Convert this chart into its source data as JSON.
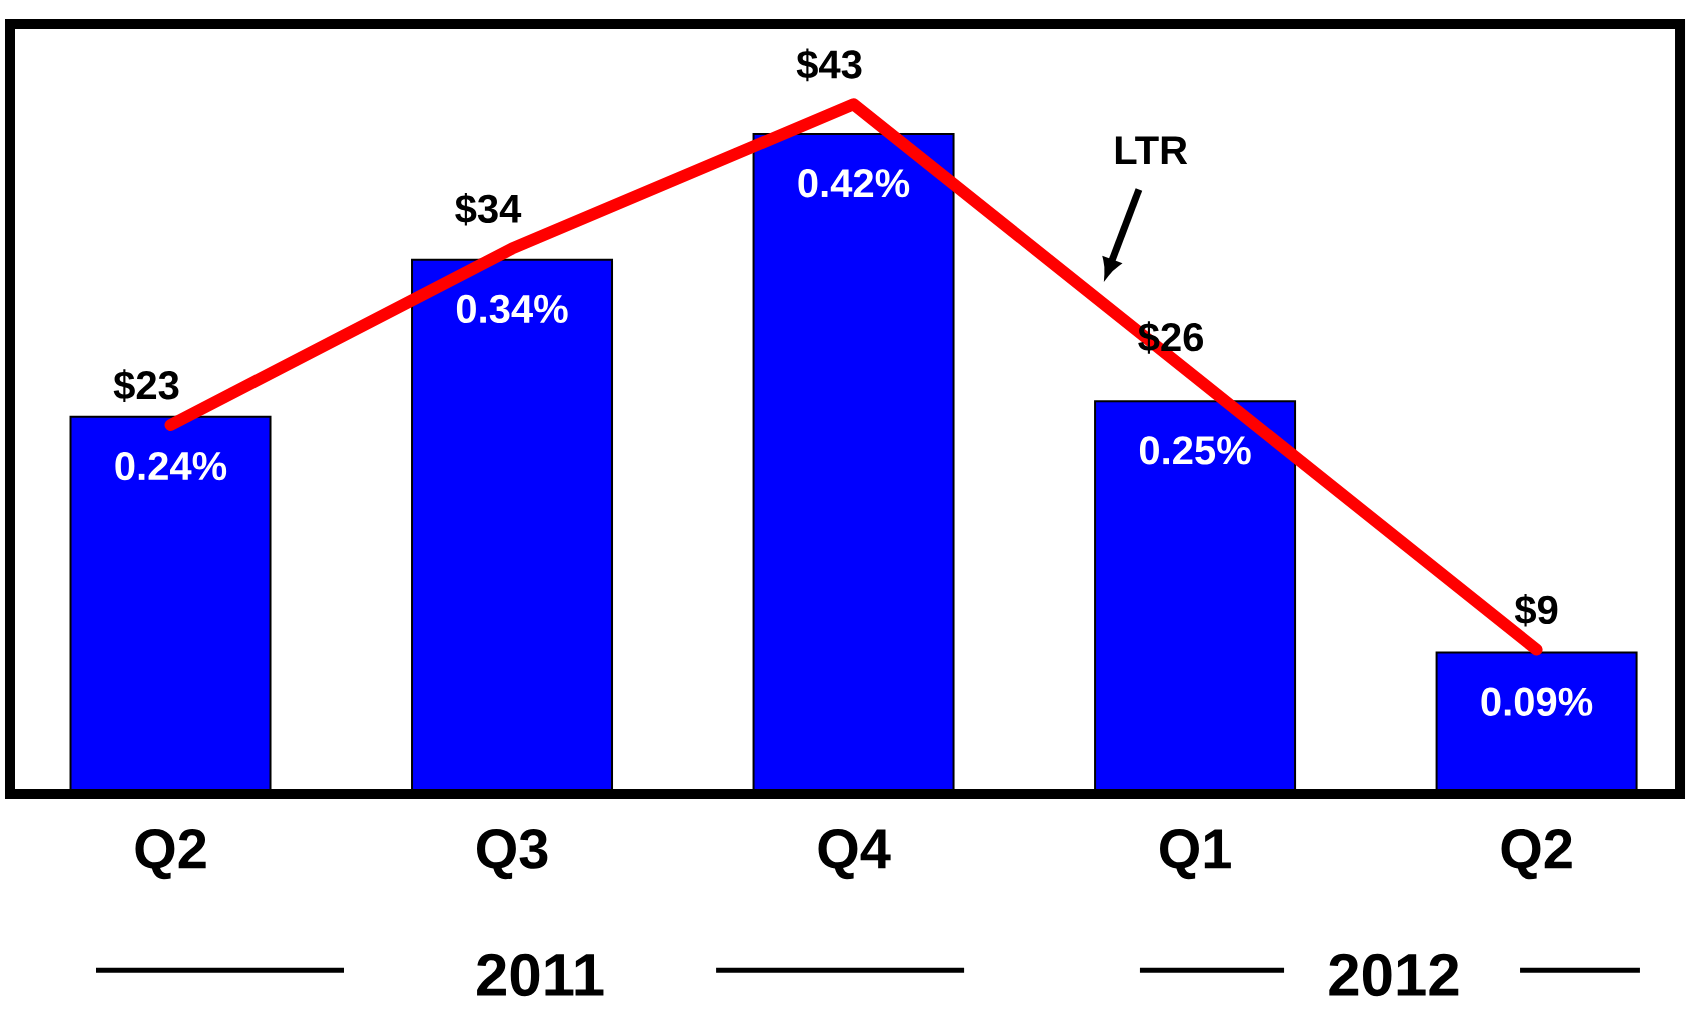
{
  "chart_data": {
    "type": "bar",
    "categories": [
      "Q2",
      "Q3",
      "Q4",
      "Q1",
      "Q2"
    ],
    "series": [
      {
        "color": "#0000ff",
        "values": [
          0.24,
          0.34,
          0.42,
          0.25,
          0.09
        ],
        "value_labels": [
          "0.24%",
          "0.34%",
          "0.42%",
          "0.25%",
          "0.09%"
        ]
      },
      {
        "type": "line",
        "name": "LTR",
        "axis": "y2",
        "color": "#ff0000",
        "values": [
          23,
          34,
          43,
          26,
          9
        ],
        "value_labels": [
          "$23",
          "$34",
          "$43",
          "$26",
          "$9"
        ]
      }
    ],
    "ylim": [
      0,
      0.49
    ],
    "y2lim": [
      0,
      48
    ],
    "annotations": [
      "2011",
      "2012"
    ]
  }
}
